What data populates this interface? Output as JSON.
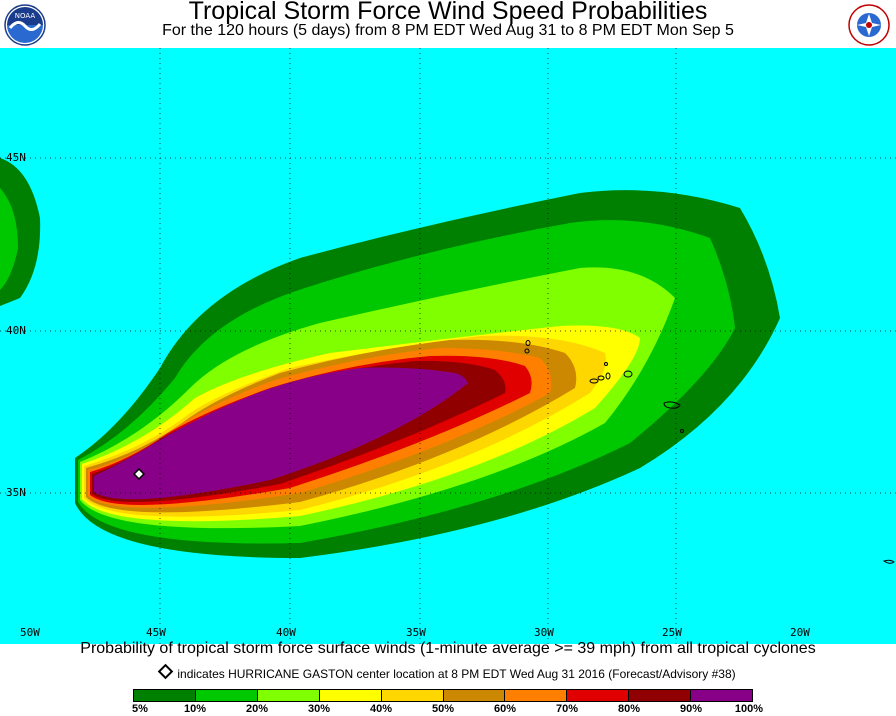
{
  "header": {
    "title": "Tropical Storm Force Wind Speed Probabilities",
    "subtitle": "For the 120 hours (5 days) from 8 PM EDT Wed Aug 31 to 8 PM EDT Mon Sep 5",
    "left_logo": "noaa-logo",
    "right_logo": "nws-logo"
  },
  "map": {
    "lat_labels": [
      "45N",
      "40N",
      "35N"
    ],
    "lon_labels": [
      "50W",
      "45W",
      "40W",
      "35W",
      "30W",
      "25W",
      "20W"
    ],
    "background_color": "#00ffff",
    "storm_marker": "diamond-icon"
  },
  "caption": "Probability of tropical storm force surface winds (1-minute average >= 39 mph) from all tropical cyclones",
  "note": "indicates HURRICANE GASTON center location at 8 PM EDT Wed Aug 31 2016 (Forecast/Advisory #38)",
  "legend": {
    "colors": [
      "#008000",
      "#00c800",
      "#80ff00",
      "#ffff00",
      "#ffd700",
      "#cc8800",
      "#ff8000",
      "#e00000",
      "#900000",
      "#880088"
    ],
    "labels": [
      "5%",
      "10%",
      "20%",
      "30%",
      "40%",
      "50%",
      "60%",
      "70%",
      "80%",
      "90%",
      "100%"
    ]
  }
}
